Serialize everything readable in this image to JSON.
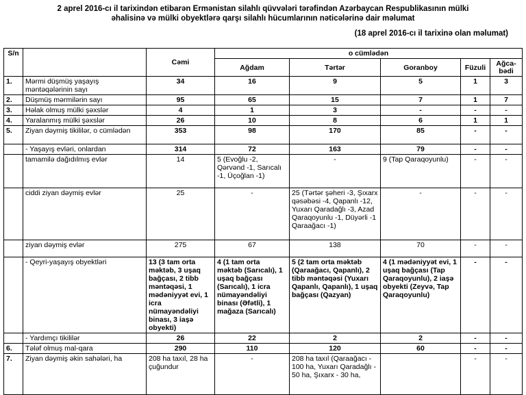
{
  "header": {
    "title": "2 aprel 2016-cı il tarixindən etibarən Ermənistan silahlı qüvvələri tərəfindən Azərbaycan Respublikasının mülki əhalisinə və mülki obyektlərə qarşı silahlı hücumlarının nəticələrinə dair məlumat",
    "subtitle": "(18 aprel 2016-cı il tarixinə olan məlumat)"
  },
  "table": {
    "columns": {
      "sn": "S/n",
      "total": "Cəmi",
      "group": "o cümlədən",
      "regions": [
        "Ağdam",
        "Tərtər",
        "Goranboy",
        "Füzuli",
        "Ağca-bədi"
      ]
    },
    "rows": [
      [
        "1.",
        "Mərmi düşmüş yaşayış məntəqələrinin sayı",
        "34",
        "16",
        "9",
        "5",
        "1",
        "3"
      ],
      [
        "2.",
        "Düşmüş mərmilərin sayı",
        "95",
        "65",
        "15",
        "7",
        "1",
        "7"
      ],
      [
        "3.",
        "Həlak olmuş mülki şəxslər",
        "4",
        "1",
        "3",
        "-",
        "-",
        "-"
      ],
      [
        "4.",
        "Yaralanmış mülki şəxslər",
        "26",
        "10",
        "8",
        "6",
        "1",
        "1"
      ],
      [
        "5.",
        "Ziyan dəymiş tikililər, o cümlədən",
        "353",
        "98",
        "170",
        "85",
        "-",
        "-"
      ],
      [
        "",
        "- Yaşayış evləri, onlardan",
        "314",
        "72",
        "163",
        "79",
        "-",
        "-"
      ],
      [
        "",
        "tamamilə dağıdılmış evlər",
        "14",
        "5 (Evoğlu -2, Qərvənd -1, Sarıcalı -1, Üçoğlan -1)",
        "-",
        "9 (Tap Qaraqoyunlu)",
        "-",
        "-"
      ],
      [
        "",
        "ciddi ziyan dəymiş evlər",
        "25",
        "-",
        "25 (Tərtər şəheri -3, Şıxarx qəsəbəsi -4, Qapanlı -12, Yuxarı Qaradağlı -3, Azad Qaraqoyunlu -1, Düyərli -1 Qaraağacı -1)",
        "-",
        "-",
        "-"
      ],
      [
        "",
        "ziyan dəymiş evlər",
        "275",
        "67",
        "138",
        "70",
        "-",
        "-"
      ],
      [
        "",
        "- Qeyri-yaşayış obyektləri",
        "13 (3 tam orta məktəb, 3 uşaq bağçası, 2 tibb məntəqəsi, 1 mədəniyyət evi, 1 icra nümayəndəliyi binası, 3 iaşə obyekti)",
        "4 (1 tam orta məktəb (Sarıcalı), 1 uşaq bağçası (Sarıcalı), 1 icra nümayəndəliyi binası (Əfətli), 1 mağaza (Sarıcalı)",
        "5 (2 tam orta məktəb (Qaraağacı, Qapanlı), 2 tibb məntəqəsi (Yuxarı Qapanlı, Qapanlı), 1 uşaq bağçası (Qazyan)",
        "4 (1 mədəniyyət evi, 1 uşaq bağçası (Tap Qaraqoyunlu), 2 iaşə obyekti (Zeyvə, Tap Qaraqoyunlu)",
        "-",
        "-"
      ],
      [
        "",
        "- Yardımçı tikililər",
        "26",
        "22",
        "2",
        "2",
        "-",
        "-"
      ],
      [
        "6.",
        "Tələf olmuş mal-qara",
        "290",
        "110",
        "120",
        "60",
        "-",
        "-"
      ],
      [
        "7.",
        "Ziyan dəymiş əkin sahələri, ha",
        "208 ha taxıl, 28 ha çuğundur",
        "-",
        "208 ha taxıl (Qaraağacı - 100 ha, Yuxarı Qaradağlı - 50 ha, Şıxarx - 30 ha,",
        "",
        "-",
        "-"
      ]
    ]
  }
}
